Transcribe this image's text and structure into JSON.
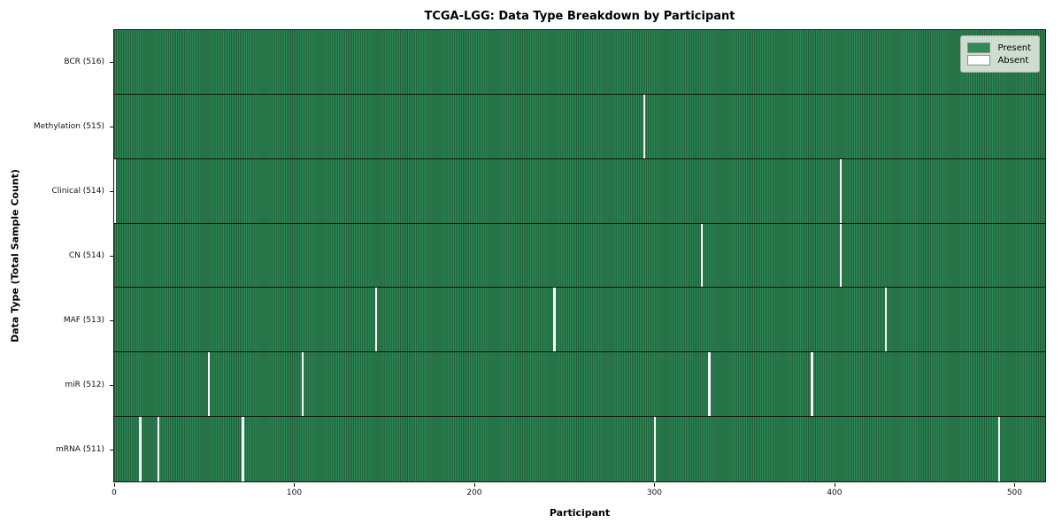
{
  "title": "TCGA-LGG: Data Type Breakdown by Participant",
  "x_axis_label": "Participant",
  "y_axis_label": "Data Type (Total Sample Count)",
  "colors": {
    "present": "#2e8b57",
    "present_stripe_dark": "#1d5434",
    "absent": "#fcfcfc",
    "spine": "#141414",
    "legend_background": "#eceee8",
    "legend_border": "#b4b7b0"
  },
  "chart_data": {
    "type": "heatmap",
    "title": "TCGA-LGG: Data Type Breakdown by Participant",
    "xlabel": "Participant",
    "ylabel": "Data Type (Total Sample Count)",
    "x_ticks": [
      0,
      100,
      200,
      300,
      400,
      500
    ],
    "xlim": [
      0,
      517
    ],
    "total_participants": 516,
    "grid": false,
    "legend_position": "upper right",
    "legend": [
      {
        "label": "Present",
        "color": "#2e8b57"
      },
      {
        "label": "Absent",
        "color": "#ffffff"
      }
    ],
    "rows": [
      {
        "label": "BCR (516)",
        "name": "BCR",
        "present_count": 516,
        "absent_participants": []
      },
      {
        "label": "Methylation (515)",
        "name": "Methylation",
        "present_count": 515,
        "absent_participants": [
          294
        ]
      },
      {
        "label": "Clinical (514)",
        "name": "Clinical",
        "present_count": 514,
        "absent_participants": [
          0,
          403
        ]
      },
      {
        "label": "CN (514)",
        "name": "CN",
        "present_count": 514,
        "absent_participants": [
          326,
          403
        ]
      },
      {
        "label": "MAF (513)",
        "name": "MAF",
        "present_count": 513,
        "absent_participants": [
          145,
          244,
          428
        ]
      },
      {
        "label": "miR (512)",
        "name": "miR",
        "present_count": 512,
        "absent_participants": [
          52,
          104,
          330,
          387
        ]
      },
      {
        "label": "mRNA (511)",
        "name": "mRNA",
        "present_count": 511,
        "absent_participants": [
          14,
          24,
          71,
          300,
          491
        ]
      }
    ]
  }
}
